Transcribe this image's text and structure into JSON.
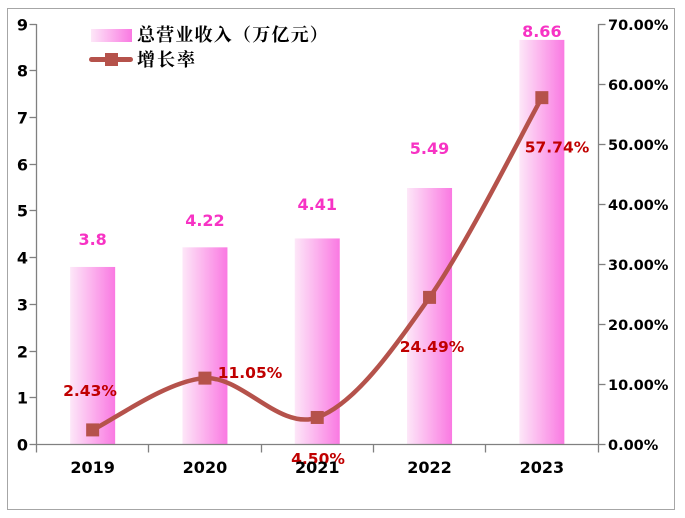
{
  "chart_data": {
    "type": "combo",
    "subtype": [
      "bar",
      "line"
    ],
    "categories": [
      "2019",
      "2020",
      "2021",
      "2022",
      "2023"
    ],
    "series": [
      {
        "name": "总营业收入（万亿元）",
        "type": "bar",
        "axis": "left",
        "values": [
          3.8,
          4.22,
          4.41,
          5.49,
          8.66
        ],
        "labels": [
          "3.8",
          "4.22",
          "4.41",
          "5.49",
          "8.66"
        ]
      },
      {
        "name": "增长率",
        "type": "line",
        "axis": "right",
        "smooth": true,
        "marker": "square",
        "values": [
          2.43,
          11.05,
          4.5,
          24.49,
          57.74
        ],
        "labels": [
          "2.43%",
          "11.05%",
          "4.50%",
          "24.49%",
          "57.74%"
        ]
      }
    ],
    "left_axis": {
      "min": 0,
      "max": 9,
      "step": 1,
      "ticks": [
        "0",
        "1",
        "2",
        "3",
        "4",
        "5",
        "6",
        "7",
        "8",
        "9"
      ]
    },
    "right_axis": {
      "min": 0,
      "max": 70,
      "step": 10,
      "ticks": [
        "0.00%",
        "10.00%",
        "20.00%",
        "30.00%",
        "40.00%",
        "50.00%",
        "60.00%",
        "70.00%"
      ]
    },
    "grid": false,
    "legend_position": "top-left-inside"
  },
  "legend": {
    "bar_series_label": "总营业收入（万亿元）",
    "line_series_label": "增长率"
  },
  "colors": {
    "bar_gradient_start": "#fde7f8",
    "bar_gradient_end": "#fa79e2",
    "bar_label": "#f733c4",
    "line": "#b5524b",
    "line_label": "#c00000",
    "axis": "#808080",
    "border": "#a6a6a6",
    "text": "#000000",
    "background": "#ffffff"
  }
}
